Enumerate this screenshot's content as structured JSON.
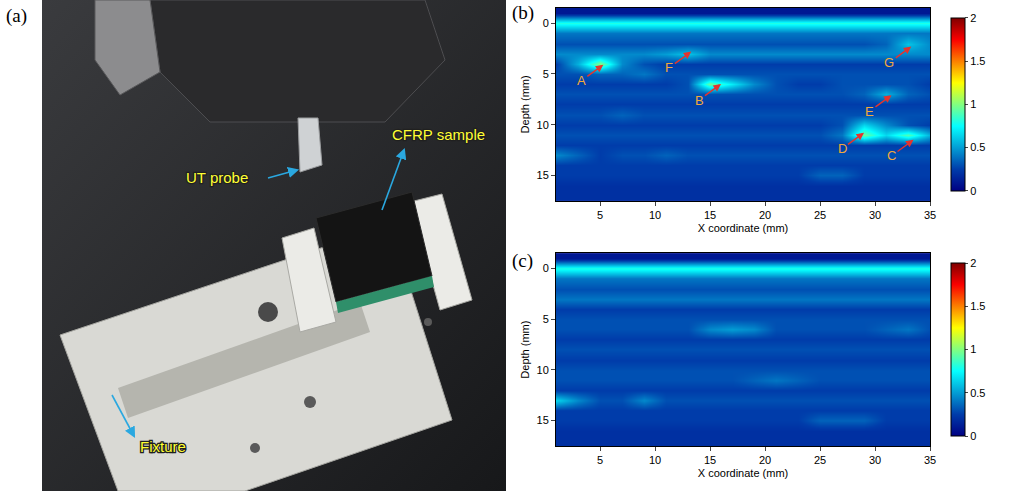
{
  "photo_panel": {
    "label": "(a)",
    "callouts": [
      "UT probe",
      "CFRP sample",
      "Fixture"
    ]
  },
  "chart_data": [
    {
      "type": "heatmap",
      "panel": "(b)",
      "x_label": "X coordinate (mm)",
      "y_label": "Depth (mm)",
      "color": "Jet",
      "x": [
        1,
        3,
        5,
        7,
        9,
        11,
        13,
        15,
        17,
        19,
        21,
        23,
        25,
        27,
        29,
        31,
        33,
        35
      ],
      "y": [
        -1,
        0,
        1,
        2,
        3,
        4,
        5,
        6,
        7,
        8,
        9,
        10,
        11,
        12,
        13,
        14,
        15,
        16,
        17
      ],
      "z": [
        [
          0.1,
          0.1,
          0.1,
          0.1,
          0.1,
          0.1,
          0.1,
          0.1,
          0.1,
          0.1,
          0.1,
          0.1,
          0.1,
          0.1,
          0.1,
          0.1,
          0.1,
          0.1
        ],
        [
          0.8,
          0.8,
          0.8,
          0.8,
          0.8,
          0.8,
          0.8,
          0.8,
          0.8,
          0.8,
          0.8,
          0.8,
          0.8,
          0.8,
          0.8,
          0.8,
          0.8,
          0.8
        ],
        [
          0.4,
          0.4,
          0.4,
          0.4,
          0.4,
          0.4,
          0.4,
          0.4,
          0.4,
          0.4,
          0.4,
          0.4,
          0.4,
          0.4,
          0.4,
          0.4,
          0.4,
          0.4
        ],
        [
          0.3,
          0.3,
          0.3,
          0.3,
          0.3,
          0.3,
          0.3,
          0.3,
          0.3,
          0.3,
          0.3,
          0.3,
          0.3,
          0.3,
          0.3,
          0.35,
          0.6,
          0.45
        ],
        [
          0.45,
          0.45,
          0.45,
          0.45,
          0.45,
          0.5,
          0.6,
          0.45,
          0.45,
          0.45,
          0.45,
          0.45,
          0.45,
          0.45,
          0.45,
          0.45,
          0.45,
          0.45
        ],
        [
          0.25,
          0.55,
          1.0,
          0.45,
          0.3,
          0.25,
          0.25,
          0.25,
          0.25,
          0.25,
          0.25,
          0.25,
          0.25,
          0.25,
          0.25,
          0.25,
          0.25,
          0.25
        ],
        [
          0.3,
          0.3,
          0.35,
          0.35,
          0.4,
          0.3,
          0.3,
          0.3,
          0.3,
          0.3,
          0.3,
          0.3,
          0.3,
          0.3,
          0.3,
          0.3,
          0.3,
          0.3
        ],
        [
          0.25,
          0.25,
          0.25,
          0.25,
          0.25,
          0.25,
          0.3,
          0.95,
          0.7,
          0.45,
          0.3,
          0.25,
          0.25,
          0.3,
          0.3,
          0.3,
          0.3,
          0.25
        ],
        [
          0.3,
          0.3,
          0.3,
          0.3,
          0.3,
          0.3,
          0.3,
          0.3,
          0.3,
          0.3,
          0.3,
          0.3,
          0.3,
          0.3,
          0.35,
          0.55,
          0.35,
          0.3
        ],
        [
          0.25,
          0.25,
          0.25,
          0.25,
          0.25,
          0.25,
          0.25,
          0.25,
          0.25,
          0.25,
          0.25,
          0.25,
          0.25,
          0.25,
          0.25,
          0.25,
          0.25,
          0.25
        ],
        [
          0.3,
          0.3,
          0.3,
          0.35,
          0.3,
          0.3,
          0.3,
          0.3,
          0.3,
          0.3,
          0.3,
          0.3,
          0.3,
          0.3,
          0.3,
          0.3,
          0.3,
          0.3
        ],
        [
          0.25,
          0.25,
          0.25,
          0.25,
          0.25,
          0.25,
          0.25,
          0.25,
          0.25,
          0.25,
          0.25,
          0.25,
          0.25,
          0.3,
          0.65,
          0.45,
          0.3,
          0.25
        ],
        [
          0.3,
          0.3,
          0.3,
          0.3,
          0.3,
          0.3,
          0.3,
          0.3,
          0.3,
          0.3,
          0.3,
          0.3,
          0.3,
          0.4,
          0.95,
          0.65,
          0.9,
          0.55
        ],
        [
          0.25,
          0.25,
          0.25,
          0.25,
          0.25,
          0.25,
          0.25,
          0.25,
          0.25,
          0.25,
          0.25,
          0.25,
          0.25,
          0.25,
          0.25,
          0.25,
          0.25,
          0.25
        ],
        [
          0.45,
          0.35,
          0.25,
          0.3,
          0.3,
          0.35,
          0.3,
          0.3,
          0.3,
          0.3,
          0.3,
          0.3,
          0.3,
          0.3,
          0.3,
          0.3,
          0.3,
          0.3
        ],
        [
          0.25,
          0.25,
          0.25,
          0.25,
          0.25,
          0.25,
          0.25,
          0.25,
          0.25,
          0.25,
          0.25,
          0.25,
          0.25,
          0.25,
          0.25,
          0.25,
          0.25,
          0.25
        ],
        [
          0.25,
          0.25,
          0.25,
          0.25,
          0.25,
          0.25,
          0.25,
          0.25,
          0.25,
          0.25,
          0.25,
          0.25,
          0.35,
          0.35,
          0.25,
          0.25,
          0.25,
          0.25
        ],
        [
          0.2,
          0.2,
          0.2,
          0.2,
          0.2,
          0.2,
          0.2,
          0.2,
          0.2,
          0.2,
          0.2,
          0.2,
          0.2,
          0.2,
          0.2,
          0.2,
          0.2,
          0.2
        ],
        [
          0.2,
          0.2,
          0.2,
          0.2,
          0.2,
          0.2,
          0.2,
          0.2,
          0.2,
          0.2,
          0.2,
          0.2,
          0.2,
          0.2,
          0.2,
          0.2,
          0.2,
          0.2
        ]
      ],
      "xlim": [
        1,
        35
      ],
      "xticks": [
        5,
        10,
        15,
        20,
        25,
        30,
        35
      ],
      "ylim": [
        -1.5,
        17.5
      ],
      "yticks": [
        0,
        5,
        10,
        15
      ],
      "zlim": [
        0,
        2
      ],
      "zticks": [
        0,
        0.5,
        1,
        1.5,
        2
      ],
      "annotations": [
        {
          "text": "A",
          "x": 5.3,
          "y": 4.1
        },
        {
          "text": "B",
          "x": 16,
          "y": 6
        },
        {
          "text": "C",
          "x": 33.5,
          "y": 11.5
        },
        {
          "text": "D",
          "x": 29,
          "y": 10.8
        },
        {
          "text": "E",
          "x": 31.5,
          "y": 7.1
        },
        {
          "text": "F",
          "x": 13.3,
          "y": 2.8
        },
        {
          "text": "G",
          "x": 33.3,
          "y": 2.3
        }
      ]
    },
    {
      "type": "heatmap",
      "panel": "(c)",
      "x_label": "X coordinate (mm)",
      "y_label": "Depth (mm)",
      "color": "Jet",
      "x": [
        1,
        3,
        5,
        7,
        9,
        11,
        13,
        15,
        17,
        19,
        21,
        23,
        25,
        27,
        29,
        31,
        33,
        35
      ],
      "y": [
        -1,
        0,
        1,
        2,
        3,
        4,
        5,
        6,
        7,
        8,
        9,
        10,
        11,
        12,
        13,
        14,
        15,
        16,
        17
      ],
      "z": [
        [
          0.1,
          0.1,
          0.1,
          0.1,
          0.1,
          0.1,
          0.1,
          0.1,
          0.1,
          0.1,
          0.1,
          0.1,
          0.1,
          0.1,
          0.1,
          0.1,
          0.1,
          0.1
        ],
        [
          0.8,
          0.8,
          0.8,
          0.8,
          0.8,
          0.8,
          0.8,
          0.8,
          0.8,
          0.8,
          0.8,
          0.8,
          0.8,
          0.8,
          0.8,
          0.8,
          0.8,
          0.8
        ],
        [
          0.4,
          0.4,
          0.4,
          0.4,
          0.4,
          0.4,
          0.4,
          0.4,
          0.4,
          0.4,
          0.4,
          0.4,
          0.4,
          0.4,
          0.4,
          0.4,
          0.4,
          0.4
        ],
        [
          0.3,
          0.3,
          0.3,
          0.3,
          0.3,
          0.3,
          0.3,
          0.3,
          0.3,
          0.3,
          0.3,
          0.3,
          0.3,
          0.3,
          0.3,
          0.3,
          0.3,
          0.3
        ],
        [
          0.4,
          0.4,
          0.4,
          0.4,
          0.4,
          0.4,
          0.4,
          0.4,
          0.4,
          0.4,
          0.4,
          0.4,
          0.4,
          0.4,
          0.4,
          0.4,
          0.4,
          0.4
        ],
        [
          0.25,
          0.25,
          0.25,
          0.25,
          0.25,
          0.25,
          0.25,
          0.25,
          0.25,
          0.25,
          0.25,
          0.25,
          0.25,
          0.25,
          0.25,
          0.25,
          0.25,
          0.25
        ],
        [
          0.3,
          0.3,
          0.3,
          0.3,
          0.3,
          0.3,
          0.3,
          0.3,
          0.3,
          0.3,
          0.3,
          0.3,
          0.3,
          0.3,
          0.3,
          0.3,
          0.3,
          0.3
        ],
        [
          0.3,
          0.3,
          0.3,
          0.3,
          0.3,
          0.3,
          0.3,
          0.45,
          0.5,
          0.45,
          0.3,
          0.3,
          0.3,
          0.3,
          0.3,
          0.35,
          0.4,
          0.3
        ],
        [
          0.25,
          0.25,
          0.25,
          0.25,
          0.25,
          0.25,
          0.25,
          0.25,
          0.25,
          0.25,
          0.25,
          0.25,
          0.25,
          0.25,
          0.25,
          0.25,
          0.25,
          0.25
        ],
        [
          0.3,
          0.3,
          0.3,
          0.3,
          0.3,
          0.3,
          0.3,
          0.3,
          0.3,
          0.3,
          0.3,
          0.3,
          0.3,
          0.3,
          0.3,
          0.3,
          0.3,
          0.3
        ],
        [
          0.25,
          0.25,
          0.25,
          0.25,
          0.25,
          0.25,
          0.25,
          0.25,
          0.25,
          0.25,
          0.25,
          0.25,
          0.25,
          0.25,
          0.25,
          0.25,
          0.25,
          0.25
        ],
        [
          0.3,
          0.3,
          0.3,
          0.3,
          0.3,
          0.3,
          0.3,
          0.3,
          0.3,
          0.3,
          0.3,
          0.3,
          0.3,
          0.3,
          0.3,
          0.3,
          0.3,
          0.3
        ],
        [
          0.3,
          0.3,
          0.3,
          0.3,
          0.3,
          0.3,
          0.3,
          0.3,
          0.3,
          0.35,
          0.4,
          0.35,
          0.3,
          0.3,
          0.3,
          0.3,
          0.3,
          0.3
        ],
        [
          0.25,
          0.25,
          0.25,
          0.25,
          0.25,
          0.25,
          0.25,
          0.25,
          0.25,
          0.25,
          0.25,
          0.25,
          0.25,
          0.25,
          0.25,
          0.25,
          0.25,
          0.25
        ],
        [
          0.65,
          0.45,
          0.3,
          0.3,
          0.45,
          0.3,
          0.3,
          0.3,
          0.3,
          0.3,
          0.3,
          0.3,
          0.3,
          0.3,
          0.3,
          0.3,
          0.3,
          0.3
        ],
        [
          0.25,
          0.25,
          0.25,
          0.25,
          0.25,
          0.25,
          0.25,
          0.25,
          0.25,
          0.25,
          0.25,
          0.25,
          0.25,
          0.25,
          0.25,
          0.25,
          0.25,
          0.25
        ],
        [
          0.25,
          0.25,
          0.25,
          0.25,
          0.25,
          0.25,
          0.25,
          0.25,
          0.25,
          0.25,
          0.25,
          0.25,
          0.35,
          0.35,
          0.35,
          0.25,
          0.25,
          0.25
        ],
        [
          0.2,
          0.2,
          0.2,
          0.2,
          0.2,
          0.2,
          0.2,
          0.2,
          0.2,
          0.2,
          0.2,
          0.2,
          0.2,
          0.2,
          0.2,
          0.2,
          0.2,
          0.2
        ],
        [
          0.2,
          0.2,
          0.2,
          0.2,
          0.2,
          0.2,
          0.2,
          0.2,
          0.2,
          0.2,
          0.2,
          0.2,
          0.2,
          0.2,
          0.2,
          0.2,
          0.2,
          0.2
        ]
      ],
      "xlim": [
        1,
        35
      ],
      "xticks": [
        5,
        10,
        15,
        20,
        25,
        30,
        35
      ],
      "ylim": [
        -1.5,
        17.5
      ],
      "yticks": [
        0,
        5,
        10,
        15
      ],
      "zlim": [
        0,
        2
      ],
      "zticks": [
        0,
        0.5,
        1,
        1.5,
        2
      ]
    }
  ]
}
